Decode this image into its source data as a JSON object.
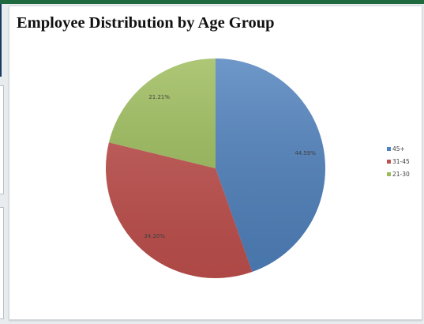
{
  "page": {
    "title": "Employee Distribution by Age Group"
  },
  "chart_data": {
    "type": "pie",
    "title": "Employee Distribution by Age Group",
    "categories": [
      "45+",
      "31-45",
      "21-30"
    ],
    "values": [
      44.59,
      34.2,
      21.21
    ],
    "data_labels": [
      "44.59%",
      "34.20%",
      "21.21%"
    ],
    "colors": [
      "#4f81bd",
      "#c0504d",
      "#9bbb59"
    ],
    "start_angle": "12 o'clock",
    "direction": "clockwise",
    "legend": {
      "position": "right",
      "entries": [
        "45+",
        "31-45",
        "21-30"
      ]
    }
  }
}
